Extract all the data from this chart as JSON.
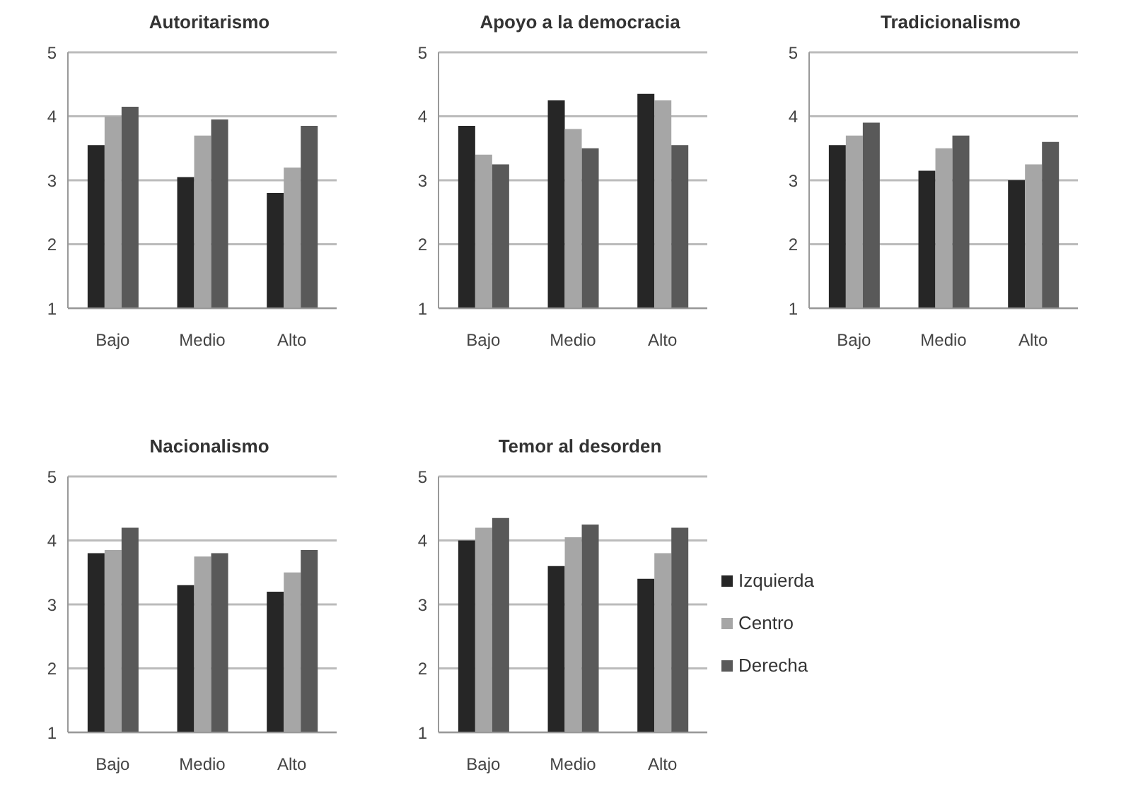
{
  "chart_data": [
    {
      "type": "bar",
      "title": "Autoritarismo",
      "categories": [
        "Bajo",
        "Medio",
        "Alto"
      ],
      "ylim": [
        1,
        5
      ],
      "yticks": [
        1,
        2,
        3,
        4,
        5
      ],
      "grid": "y",
      "series": [
        {
          "color": "#262626",
          "values": [
            3.55,
            3.05,
            2.8
          ]
        },
        {
          "color": "#a6a6a6",
          "values": [
            4.0,
            3.7,
            3.2
          ]
        },
        {
          "color": "#595959",
          "values": [
            4.15,
            3.95,
            3.85
          ]
        }
      ]
    },
    {
      "type": "bar",
      "title": "Apoyo a la democracia",
      "categories": [
        "Bajo",
        "Medio",
        "Alto"
      ],
      "ylim": [
        1,
        5
      ],
      "yticks": [
        1,
        2,
        3,
        4,
        5
      ],
      "grid": "y",
      "series": [
        {
          "color": "#262626",
          "values": [
            3.85,
            4.25,
            4.35
          ]
        },
        {
          "color": "#a6a6a6",
          "values": [
            3.4,
            3.8,
            4.25
          ]
        },
        {
          "color": "#595959",
          "values": [
            3.25,
            3.5,
            3.55
          ]
        }
      ]
    },
    {
      "type": "bar",
      "title": "Tradicionalismo",
      "categories": [
        "Bajo",
        "Medio",
        "Alto"
      ],
      "ylim": [
        1,
        5
      ],
      "yticks": [
        1,
        2,
        3,
        4,
        5
      ],
      "grid": "y",
      "series": [
        {
          "color": "#262626",
          "values": [
            3.55,
            3.15,
            3.0
          ]
        },
        {
          "color": "#a6a6a6",
          "values": [
            3.7,
            3.5,
            3.25
          ]
        },
        {
          "color": "#595959",
          "values": [
            3.9,
            3.7,
            3.6
          ]
        }
      ]
    },
    {
      "type": "bar",
      "title": "Nacionalismo",
      "categories": [
        "Bajo",
        "Medio",
        "Alto"
      ],
      "ylim": [
        1,
        5
      ],
      "yticks": [
        1,
        2,
        3,
        4,
        5
      ],
      "grid": "y",
      "series": [
        {
          "color": "#262626",
          "values": [
            3.8,
            3.3,
            3.2
          ]
        },
        {
          "color": "#a6a6a6",
          "values": [
            3.85,
            3.75,
            3.5
          ]
        },
        {
          "color": "#595959",
          "values": [
            4.2,
            3.8,
            3.85
          ]
        }
      ]
    },
    {
      "type": "bar",
      "title": "Temor al desorden",
      "categories": [
        "Bajo",
        "Medio",
        "Alto"
      ],
      "ylim": [
        1,
        5
      ],
      "yticks": [
        1,
        2,
        3,
        4,
        5
      ],
      "grid": "y",
      "legend": "right",
      "series": [
        {
          "name": "Izquierda",
          "color": "#262626",
          "values": [
            4.0,
            3.6,
            3.4
          ]
        },
        {
          "name": "Centro",
          "color": "#a6a6a6",
          "values": [
            4.2,
            4.05,
            3.8
          ]
        },
        {
          "name": "Derecha",
          "color": "#595959",
          "values": [
            4.35,
            4.25,
            4.2
          ]
        }
      ]
    }
  ]
}
